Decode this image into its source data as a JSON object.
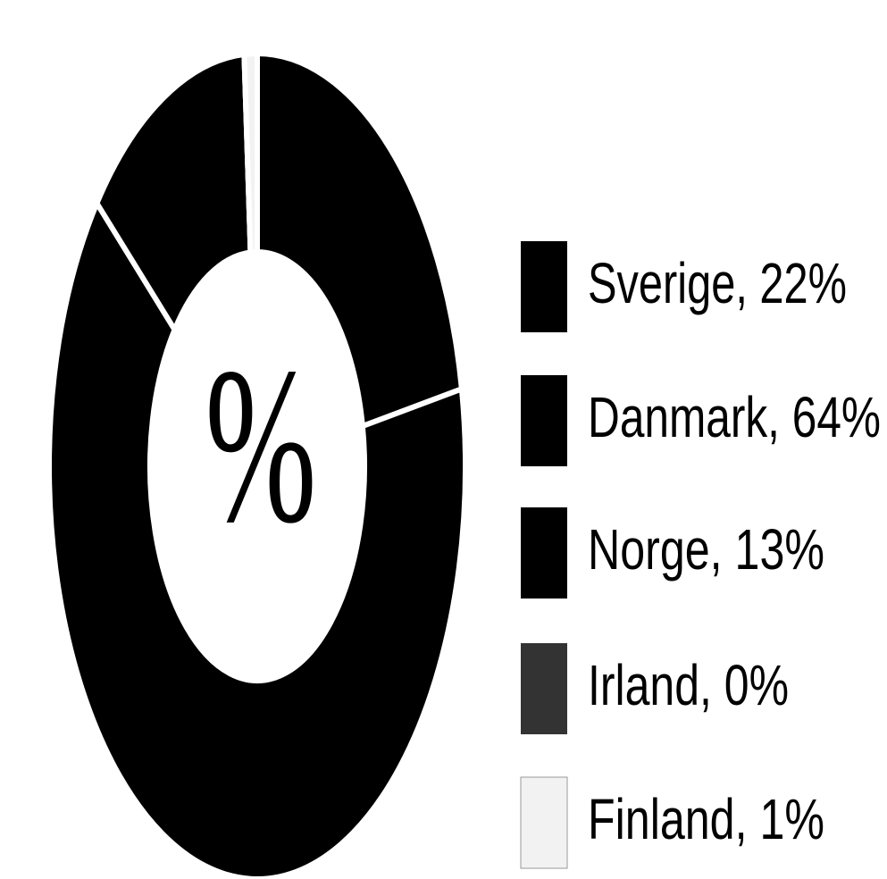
{
  "chart_data": {
    "type": "donut",
    "center_label": "%",
    "categories": [
      "Sverige",
      "Danmark",
      "Norge",
      "Irland",
      "Finland"
    ],
    "values": [
      22,
      64,
      13,
      0,
      1
    ],
    "value_labels": [
      "Sverige, 22%",
      "Danmark, 64%",
      "Norge, 13%",
      "Irland, 0%",
      "Finland, 1%"
    ],
    "colors": [
      "#000000",
      "#000000",
      "#000000",
      "#333333",
      "#f2f2f2"
    ],
    "legend": "right"
  }
}
